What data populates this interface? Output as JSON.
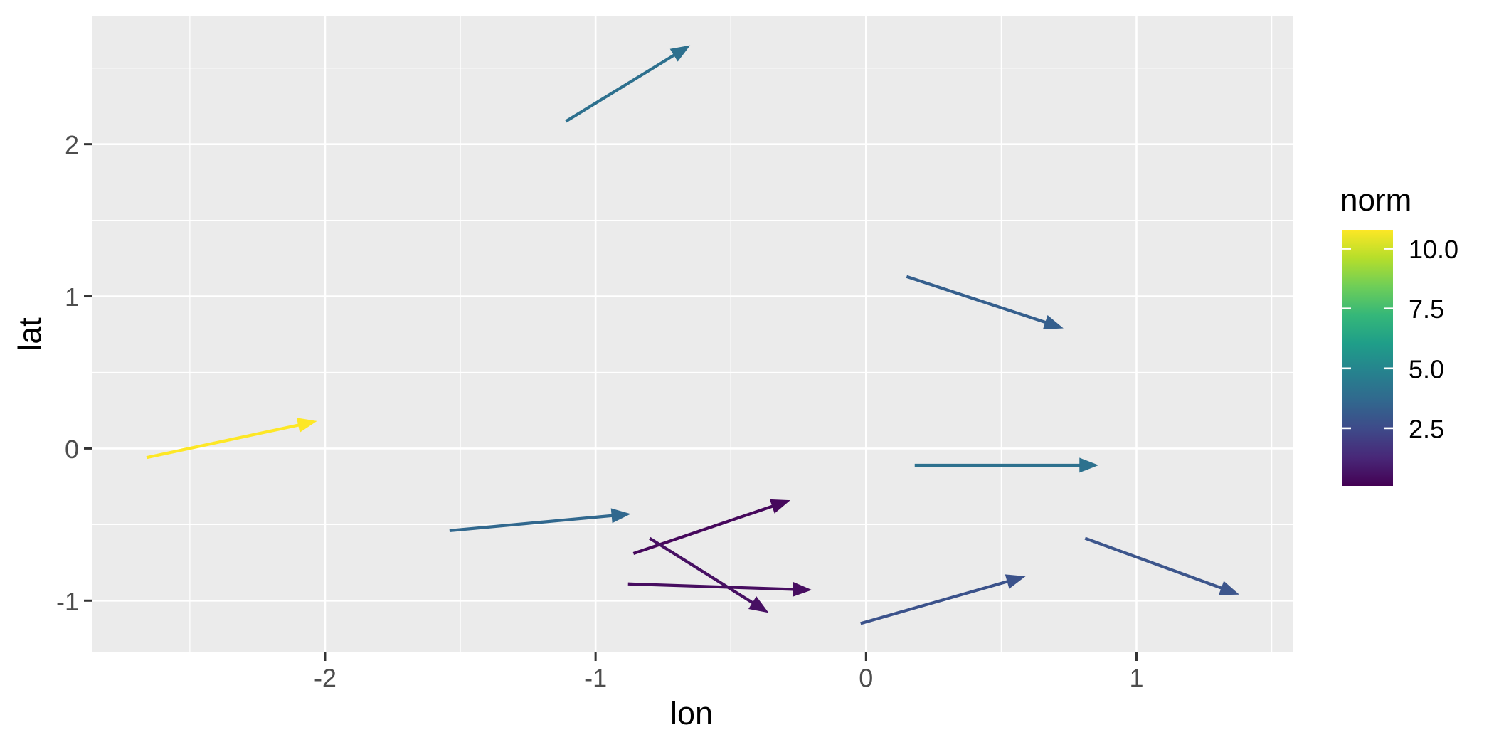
{
  "chart_data": {
    "type": "vector-arrows",
    "mark": "segment-with-arrowhead",
    "xlabel": "lon",
    "ylabel": "lat",
    "xlim": [
      -2.86,
      1.58
    ],
    "ylim": [
      -1.34,
      2.84
    ],
    "grid": true,
    "panel_background": "#EBEBEB",
    "grid_color": "#FFFFFF",
    "tick_mark_color": "#333333",
    "tick_label_color": "#4D4D4D",
    "axis_title_color": "#000000",
    "x_ticks": [
      {
        "label": "-2",
        "value": -2
      },
      {
        "label": "-1",
        "value": -1
      },
      {
        "label": "0",
        "value": 0
      },
      {
        "label": "1",
        "value": 1
      }
    ],
    "y_ticks": [
      {
        "label": "-1",
        "value": -1
      },
      {
        "label": "0",
        "value": 0
      },
      {
        "label": "1",
        "value": 1
      },
      {
        "label": "2",
        "value": 2
      }
    ],
    "x_minor_ticks": [
      -2.5,
      -1.5,
      -0.5,
      0.5,
      1.5
    ],
    "y_minor_ticks": [
      -0.5,
      0.5,
      1.5,
      2.5
    ],
    "segments": [
      {
        "x": -1.11,
        "y": 2.15,
        "xend": -0.65,
        "yend": 2.65,
        "color": "#2d708e",
        "norm_approx": 4.9
      },
      {
        "x": 0.15,
        "y": 1.13,
        "xend": 0.73,
        "yend": 0.79,
        "color": "#355f8d",
        "norm_approx": 4.0
      },
      {
        "x": -2.66,
        "y": -0.06,
        "xend": -2.03,
        "yend": 0.18,
        "color": "#fde725",
        "norm_approx": 10.8
      },
      {
        "x": -1.54,
        "y": -0.54,
        "xend": -0.87,
        "yend": -0.43,
        "color": "#31688e",
        "norm_approx": 4.5
      },
      {
        "x": -0.86,
        "y": -0.69,
        "xend": -0.28,
        "yend": -0.34,
        "color": "#46085c",
        "norm_approx": 0.4
      },
      {
        "x": -0.88,
        "y": -0.89,
        "xend": -0.2,
        "yend": -0.93,
        "color": "#470d60",
        "norm_approx": 0.7
      },
      {
        "x": -0.8,
        "y": -0.59,
        "xend": -0.36,
        "yend": -1.08,
        "color": "#471063",
        "norm_approx": 0.9
      },
      {
        "x": 0.18,
        "y": -0.11,
        "xend": 0.86,
        "yend": -0.11,
        "color": "#2d718e",
        "norm_approx": 4.8
      },
      {
        "x": -0.02,
        "y": -1.15,
        "xend": 0.59,
        "yend": -0.84,
        "color": "#3b528b",
        "norm_approx": 3.2
      },
      {
        "x": 0.81,
        "y": -0.59,
        "xend": 1.38,
        "yend": -0.96,
        "color": "#3d568c",
        "norm_approx": 3.5
      }
    ],
    "legend": {
      "title": "norm",
      "position": "right",
      "value_range": [
        0.09,
        10.79
      ],
      "tick_labels": [
        {
          "text": "10.0",
          "value": 10.0
        },
        {
          "text": "7.5",
          "value": 7.5
        },
        {
          "text": "5.0",
          "value": 5.0
        },
        {
          "text": "2.5",
          "value": 2.5
        }
      ],
      "colorbar_gradient_bottom_to_top": [
        "#440154",
        "#482878",
        "#3e4a89",
        "#31688e",
        "#26828e",
        "#1f9e89",
        "#35b779",
        "#6ece58",
        "#b5de2b",
        "#fde725"
      ]
    }
  }
}
